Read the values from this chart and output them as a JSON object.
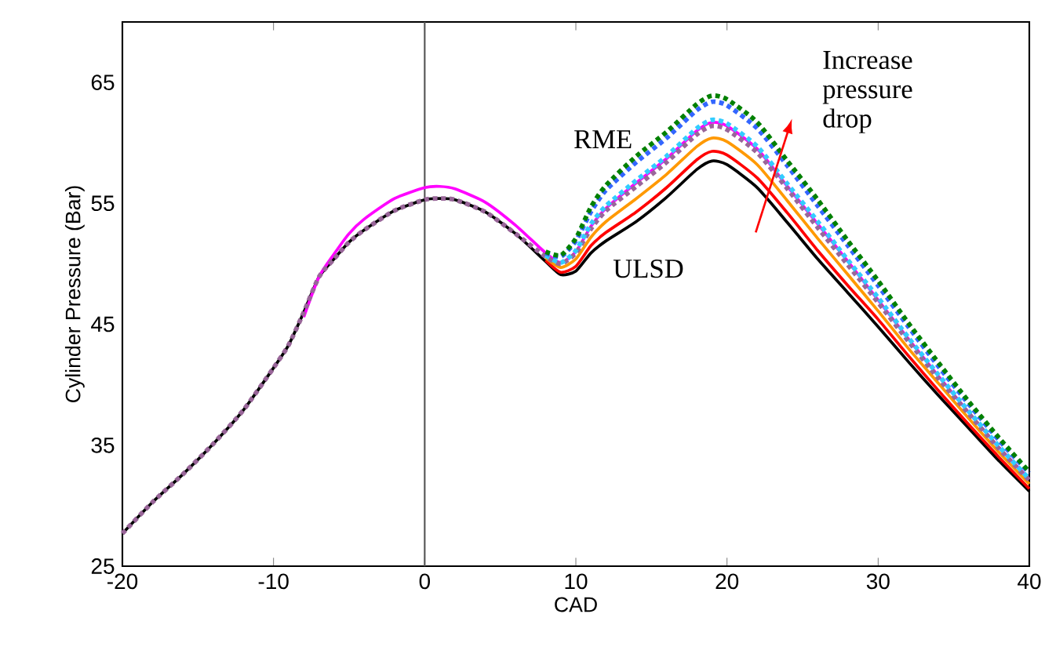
{
  "chart_data": {
    "type": "line",
    "xlabel": "CAD",
    "ylabel": "Cylinder Pressure (Bar)",
    "xlim": [
      -20,
      40
    ],
    "ylim": [
      25,
      70
    ],
    "xticks": [
      -20,
      -10,
      0,
      10,
      20,
      30,
      40
    ],
    "yticks": [
      25,
      35,
      45,
      55,
      65
    ],
    "x": [
      -20,
      -18,
      -16,
      -14,
      -12,
      -10,
      -9,
      -8,
      -7,
      -6,
      -5,
      -4,
      -2,
      0,
      1,
      2,
      4,
      6,
      8,
      9,
      10,
      11,
      12,
      14,
      16,
      18,
      19,
      20,
      22,
      24,
      26,
      28,
      30,
      32,
      34,
      36,
      38,
      40
    ],
    "series": [
      {
        "color": "#000000",
        "line_style": "solid",
        "values": [
          27.7,
          30.3,
          32.6,
          35.1,
          37.9,
          41.4,
          43.3,
          46.0,
          48.9,
          50.4,
          51.8,
          52.8,
          54.4,
          55.3,
          55.4,
          55.3,
          54.3,
          52.5,
          50.2,
          49.1,
          49.4,
          50.9,
          51.9,
          53.5,
          55.5,
          57.8,
          58.5,
          58.2,
          56.3,
          53.4,
          50.4,
          47.6,
          44.8,
          41.9,
          39.1,
          36.4,
          33.7,
          31.2
        ]
      },
      {
        "color": "#ff0000",
        "line_style": "solid",
        "values": [
          null,
          null,
          null,
          null,
          null,
          null,
          null,
          null,
          null,
          null,
          null,
          null,
          null,
          null,
          null,
          null,
          null,
          null,
          50.3,
          49.3,
          49.8,
          51.5,
          52.6,
          54.3,
          56.3,
          58.6,
          59.3,
          59.0,
          57.1,
          54.2,
          51.1,
          48.2,
          45.4,
          42.4,
          39.5,
          36.7,
          34.0,
          31.4
        ]
      },
      {
        "color": "#ff9900",
        "line_style": "solid",
        "values": [
          null,
          null,
          null,
          null,
          null,
          null,
          null,
          null,
          null,
          null,
          null,
          null,
          null,
          null,
          null,
          null,
          null,
          null,
          50.5,
          49.7,
          50.4,
          52.2,
          53.5,
          55.4,
          57.4,
          59.7,
          60.4,
          60.1,
          58.2,
          55.2,
          52.1,
          49.1,
          46.1,
          43.0,
          40.1,
          37.2,
          34.4,
          31.8
        ]
      },
      {
        "color": "#ff00ff",
        "line_style": "solid",
        "values": [
          null,
          null,
          null,
          null,
          null,
          null,
          null,
          45.6,
          48.9,
          50.8,
          52.5,
          53.7,
          55.4,
          56.3,
          56.4,
          56.2,
          55.1,
          53.2,
          50.9,
          50.1,
          51.0,
          53.1,
          54.6,
          56.7,
          58.7,
          61.0,
          61.7,
          61.4,
          59.5,
          56.4,
          53.3,
          50.2,
          47.0,
          43.8,
          40.7,
          37.7,
          34.8,
          32.2
        ]
      },
      {
        "color": "#996699",
        "line_style": "dotted",
        "values": [
          27.7,
          30.3,
          32.6,
          35.1,
          37.9,
          41.4,
          43.3,
          46.0,
          48.9,
          50.4,
          51.8,
          52.8,
          54.4,
          55.3,
          55.4,
          55.3,
          54.3,
          52.5,
          50.6,
          50.0,
          50.9,
          52.9,
          54.4,
          56.4,
          58.4,
          60.7,
          61.4,
          61.1,
          59.2,
          56.2,
          53.0,
          49.9,
          46.8,
          43.6,
          40.5,
          37.6,
          34.7,
          32.1
        ]
      },
      {
        "color": "#33ccff",
        "line_style": "dotted",
        "values": [
          null,
          null,
          null,
          null,
          null,
          null,
          null,
          null,
          null,
          null,
          null,
          null,
          null,
          null,
          null,
          null,
          null,
          null,
          50.7,
          50.1,
          51.1,
          53.3,
          54.8,
          56.9,
          58.9,
          61.2,
          61.9,
          61.6,
          59.7,
          56.6,
          53.5,
          50.3,
          47.2,
          43.9,
          40.8,
          37.8,
          34.9,
          32.2
        ]
      },
      {
        "color": "#3366ff",
        "line_style": "dotted",
        "values": [
          null,
          null,
          null,
          null,
          null,
          null,
          null,
          null,
          null,
          null,
          null,
          null,
          null,
          null,
          null,
          null,
          null,
          null,
          50.9,
          50.6,
          51.9,
          54.3,
          56.1,
          58.4,
          60.4,
          62.7,
          63.4,
          63.1,
          61.2,
          58.1,
          54.8,
          51.5,
          48.2,
          44.8,
          41.5,
          38.4,
          35.4,
          32.7
        ]
      },
      {
        "color": "#008000",
        "line_style": "dotted",
        "values": [
          null,
          null,
          null,
          null,
          null,
          null,
          null,
          null,
          null,
          null,
          null,
          null,
          null,
          null,
          null,
          null,
          null,
          null,
          51.0,
          50.7,
          52.1,
          54.7,
          56.5,
          58.9,
          60.9,
          63.2,
          63.9,
          63.6,
          61.7,
          58.5,
          55.3,
          51.9,
          48.6,
          45.1,
          41.8,
          38.6,
          35.6,
          32.8
        ]
      }
    ],
    "ref_lines": [
      {
        "axis": "x",
        "value": 0,
        "color": "#555555"
      }
    ],
    "annotations": [
      "RME",
      "ULSD",
      "Increase pressure drop"
    ]
  }
}
